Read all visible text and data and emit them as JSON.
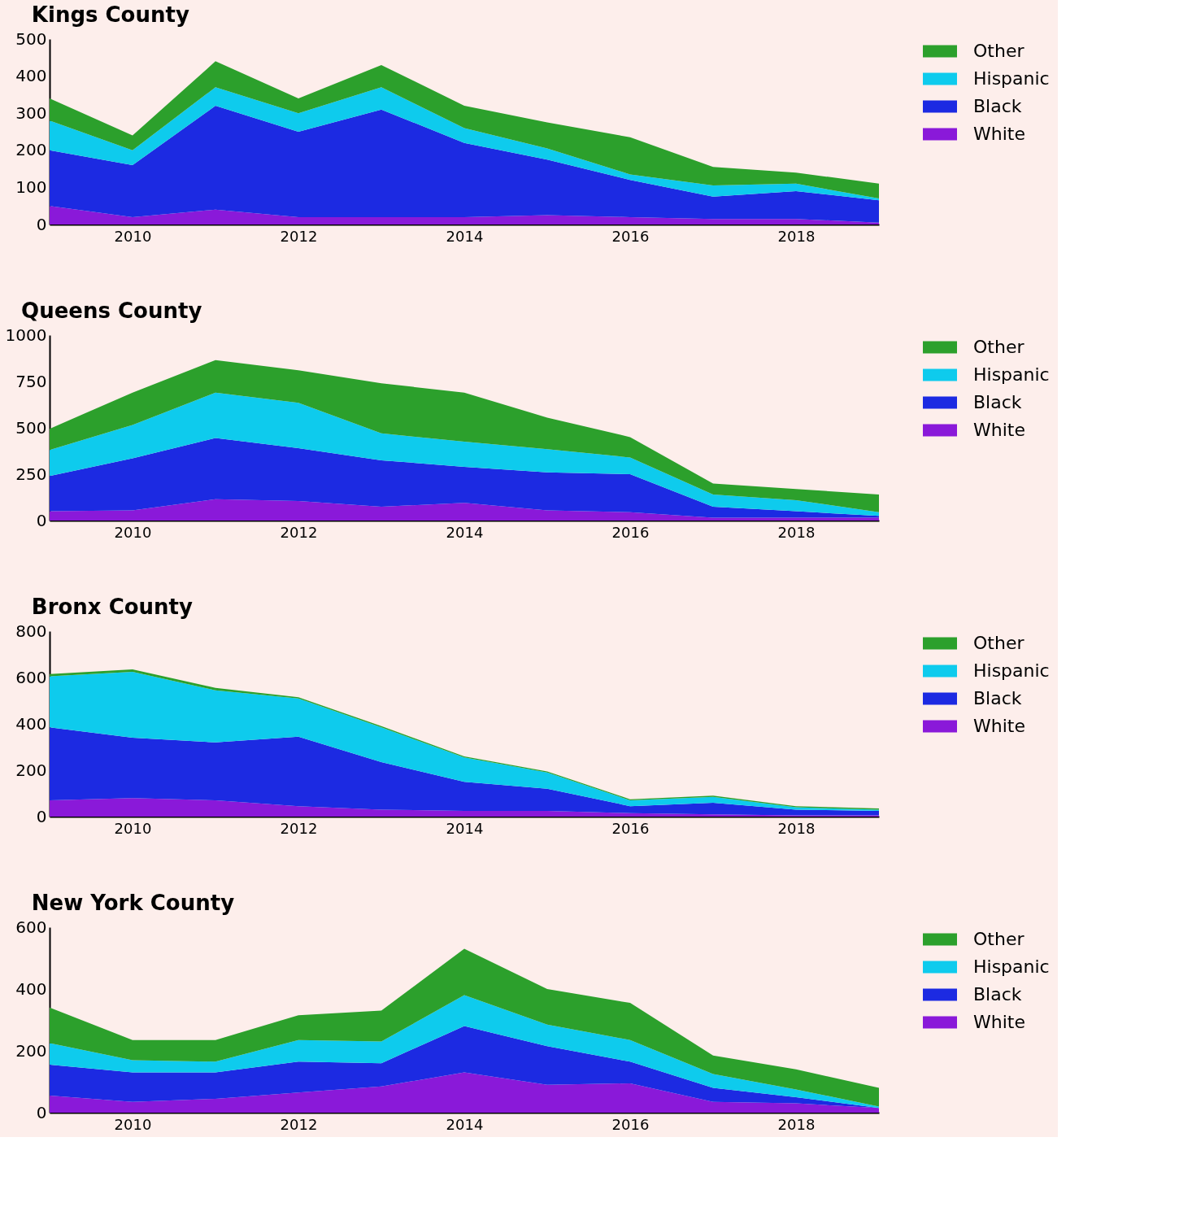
{
  "chart_data": [
    {
      "type": "area",
      "title": "Kings County",
      "stacked": true,
      "legend": "right",
      "x": [
        2009,
        2010,
        2011,
        2012,
        2013,
        2014,
        2015,
        2016,
        2017,
        2018,
        2019
      ],
      "xlim": [
        2009,
        2019
      ],
      "xticks": [
        2010,
        2012,
        2014,
        2016,
        2018
      ],
      "ylim": [
        0,
        500
      ],
      "yticks": [
        0,
        100,
        200,
        300,
        400,
        500
      ],
      "series": [
        {
          "name": "White",
          "color": "#8a19d9",
          "values": [
            50,
            20,
            40,
            20,
            20,
            20,
            25,
            20,
            15,
            15,
            5
          ]
        },
        {
          "name": "Black",
          "color": "#1c2ae2",
          "values": [
            150,
            140,
            280,
            230,
            290,
            200,
            150,
            100,
            60,
            75,
            60
          ]
        },
        {
          "name": "Hispanic",
          "color": "#0ecbed",
          "values": [
            80,
            40,
            50,
            50,
            60,
            40,
            30,
            15,
            30,
            20,
            5
          ]
        },
        {
          "name": "Other",
          "color": "#2ca02c",
          "values": [
            60,
            40,
            70,
            40,
            60,
            60,
            70,
            100,
            50,
            30,
            40
          ]
        }
      ]
    },
    {
      "type": "area",
      "title": "Queens County",
      "stacked": true,
      "legend": "right",
      "x": [
        2009,
        2010,
        2011,
        2012,
        2013,
        2014,
        2015,
        2016,
        2017,
        2018,
        2019
      ],
      "xlim": [
        2009,
        2019
      ],
      "xticks": [
        2010,
        2012,
        2014,
        2016,
        2018
      ],
      "ylim": [
        0,
        1000
      ],
      "yticks": [
        0,
        250,
        500,
        750,
        1000
      ],
      "series": [
        {
          "name": "White",
          "color": "#8a19d9",
          "values": [
            50,
            55,
            115,
            105,
            75,
            95,
            55,
            45,
            15,
            15,
            15
          ]
        },
        {
          "name": "Black",
          "color": "#1c2ae2",
          "values": [
            190,
            280,
            330,
            285,
            250,
            195,
            205,
            205,
            60,
            35,
            10
          ]
        },
        {
          "name": "Hispanic",
          "color": "#0ecbed",
          "values": [
            140,
            180,
            245,
            245,
            145,
            135,
            125,
            90,
            65,
            60,
            20
          ]
        },
        {
          "name": "Other",
          "color": "#2ca02c",
          "values": [
            115,
            175,
            175,
            175,
            270,
            265,
            170,
            110,
            60,
            60,
            95
          ]
        }
      ]
    },
    {
      "type": "area",
      "title": "Bronx County",
      "stacked": true,
      "legend": "right",
      "x": [
        2009,
        2010,
        2011,
        2012,
        2013,
        2014,
        2015,
        2016,
        2017,
        2018,
        2019
      ],
      "xlim": [
        2009,
        2019
      ],
      "xticks": [
        2010,
        2012,
        2014,
        2016,
        2018
      ],
      "ylim": [
        0,
        800
      ],
      "yticks": [
        0,
        200,
        400,
        600,
        800
      ],
      "series": [
        {
          "name": "White",
          "color": "#8a19d9",
          "values": [
            70,
            80,
            70,
            45,
            30,
            25,
            25,
            15,
            10,
            5,
            5
          ]
        },
        {
          "name": "Black",
          "color": "#1c2ae2",
          "values": [
            315,
            260,
            250,
            300,
            205,
            125,
            95,
            30,
            50,
            25,
            20
          ]
        },
        {
          "name": "Hispanic",
          "color": "#0ecbed",
          "values": [
            220,
            285,
            225,
            165,
            150,
            105,
            70,
            25,
            25,
            10,
            5
          ]
        },
        {
          "name": "Other",
          "color": "#2ca02c",
          "values": [
            10,
            10,
            10,
            5,
            5,
            5,
            5,
            5,
            5,
            5,
            5
          ]
        }
      ]
    },
    {
      "type": "area",
      "title": "New York County",
      "stacked": true,
      "legend": "right",
      "x": [
        2009,
        2010,
        2011,
        2012,
        2013,
        2014,
        2015,
        2016,
        2017,
        2018,
        2019
      ],
      "xlim": [
        2009,
        2019
      ],
      "xticks": [
        2010,
        2012,
        2014,
        2016,
        2018
      ],
      "ylim": [
        0,
        600
      ],
      "yticks": [
        0,
        200,
        400,
        600
      ],
      "series": [
        {
          "name": "White",
          "color": "#8a19d9",
          "values": [
            55,
            35,
            45,
            65,
            85,
            130,
            90,
            95,
            35,
            30,
            15
          ]
        },
        {
          "name": "Black",
          "color": "#1c2ae2",
          "values": [
            100,
            95,
            85,
            100,
            75,
            150,
            125,
            70,
            45,
            20,
            0
          ]
        },
        {
          "name": "Hispanic",
          "color": "#0ecbed",
          "values": [
            70,
            40,
            35,
            70,
            70,
            100,
            70,
            70,
            45,
            25,
            5
          ]
        },
        {
          "name": "Other",
          "color": "#2ca02c",
          "values": [
            115,
            65,
            70,
            80,
            100,
            150,
            115,
            120,
            60,
            65,
            60
          ]
        }
      ]
    }
  ]
}
